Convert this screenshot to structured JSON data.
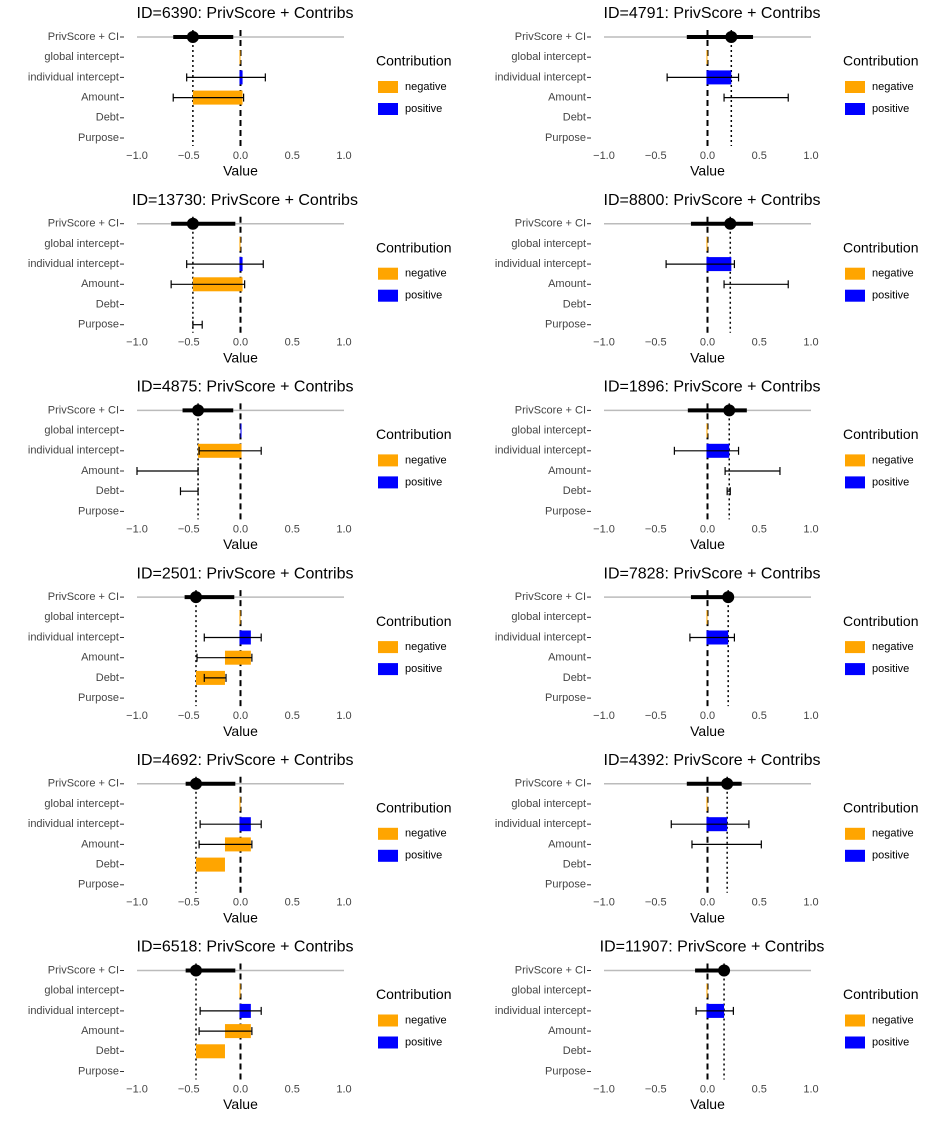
{
  "chart_data": [
    {
      "type": "waterfall",
      "title": "ID=6390: PrivScore + Contribs",
      "score": {
        "name": "PrivScore + CI",
        "value": -0.46,
        "ci": [
          -0.65,
          -0.07
        ]
      },
      "categories": [
        "global intercept",
        "individual intercept",
        "Amount",
        "Debt",
        "Purpose"
      ],
      "values": [
        -0.01,
        0.03,
        -0.48,
        0,
        0
      ],
      "error_low": [
        null,
        -0.52,
        -0.65,
        null,
        null
      ],
      "error_high": [
        null,
        0.24,
        0.03,
        null,
        null
      ],
      "xlim": [
        -1,
        1
      ],
      "xticks": [
        {
          "value": -1,
          "label": "−1.0"
        },
        {
          "value": -0.5,
          "label": "−0.5"
        },
        {
          "value": 0,
          "label": "0.0"
        },
        0.5,
        {
          "value": 1,
          "label": "1.0"
        }
      ],
      "xlabel": "Value",
      "legend": {
        "title": "Contribution",
        "items": [
          {
            "name": "negative",
            "color": "#FFA500"
          },
          {
            "name": "positive",
            "color": "#0000FF"
          }
        ]
      }
    },
    {
      "type": "waterfall",
      "title": "ID=4791: PrivScore + Contribs",
      "score": {
        "name": "PrivScore + CI",
        "value": 0.23,
        "ci": [
          -0.2,
          0.44
        ]
      },
      "categories": [
        "global intercept",
        "individual intercept",
        "Amount",
        "Debt",
        "Purpose"
      ],
      "values": [
        -0.01,
        0.24,
        0,
        0,
        0
      ],
      "error_low": [
        null,
        -0.39,
        0.16,
        null,
        null
      ],
      "error_high": [
        null,
        0.3,
        0.78,
        null,
        null
      ],
      "xlim": [
        -1,
        1
      ],
      "xticks": [
        {
          "value": -1,
          "label": "−1.0"
        },
        {
          "value": -0.5,
          "label": "−0.5"
        },
        {
          "value": 0,
          "label": "0.0"
        },
        0.5,
        {
          "value": 1,
          "label": "1.0"
        }
      ],
      "xlabel": "Value",
      "legend": {
        "title": "Contribution",
        "items": [
          {
            "name": "negative",
            "color": "#FFA500"
          },
          {
            "name": "positive",
            "color": "#0000FF"
          }
        ]
      }
    },
    {
      "type": "waterfall",
      "title": "ID=13730: PrivScore + Contribs",
      "score": {
        "name": "PrivScore + CI",
        "value": -0.46,
        "ci": [
          -0.67,
          -0.05
        ]
      },
      "categories": [
        "global intercept",
        "individual intercept",
        "Amount",
        "Debt",
        "Purpose"
      ],
      "values": [
        -0.01,
        0.03,
        -0.48,
        0,
        0
      ],
      "error_low": [
        null,
        -0.52,
        -0.67,
        null,
        -0.46
      ],
      "error_high": [
        null,
        0.22,
        0.04,
        null,
        -0.37
      ],
      "xlim": [
        -1,
        1
      ],
      "xticks": [
        {
          "value": -1,
          "label": "−1.0"
        },
        {
          "value": -0.5,
          "label": "−0.5"
        },
        {
          "value": 0,
          "label": "0.0"
        },
        0.5,
        {
          "value": 1,
          "label": "1.0"
        }
      ],
      "xlabel": "Value",
      "legend": {
        "title": "Contribution",
        "items": [
          {
            "name": "negative",
            "color": "#FFA500"
          },
          {
            "name": "positive",
            "color": "#0000FF"
          }
        ]
      }
    },
    {
      "type": "waterfall",
      "title": "ID=8800: PrivScore + Contribs",
      "score": {
        "name": "PrivScore + CI",
        "value": 0.22,
        "ci": [
          -0.16,
          0.44
        ]
      },
      "categories": [
        "global intercept",
        "individual intercept",
        "Amount",
        "Debt",
        "Purpose"
      ],
      "values": [
        -0.01,
        0.24,
        0,
        0,
        0
      ],
      "error_low": [
        null,
        -0.4,
        0.16,
        null,
        null
      ],
      "error_high": [
        null,
        0.26,
        0.78,
        null,
        null
      ],
      "xlim": [
        -1,
        1
      ],
      "xticks": [
        {
          "value": -1,
          "label": "−1.0"
        },
        {
          "value": -0.5,
          "label": "−0.5"
        },
        {
          "value": 0,
          "label": "0.0"
        },
        0.5,
        {
          "value": 1,
          "label": "1.0"
        }
      ],
      "xlabel": "Value",
      "legend": {
        "title": "Contribution",
        "items": [
          {
            "name": "negative",
            "color": "#FFA500"
          },
          {
            "name": "positive",
            "color": "#0000FF"
          }
        ]
      }
    },
    {
      "type": "waterfall",
      "title": "ID=4875: PrivScore + Contribs",
      "score": {
        "name": "PrivScore + CI",
        "value": -0.41,
        "ci": [
          -0.56,
          -0.07
        ]
      },
      "categories": [
        "global intercept",
        "individual intercept",
        "Amount",
        "Debt",
        "Purpose"
      ],
      "values": [
        0.01,
        -0.42,
        0,
        0,
        0
      ],
      "error_low": [
        null,
        -0.4,
        -1.0,
        -0.58,
        null
      ],
      "error_high": [
        null,
        0.2,
        -0.41,
        -0.41,
        null
      ],
      "xlim": [
        -1,
        1
      ],
      "xticks": [
        {
          "value": -1,
          "label": "−1.0"
        },
        {
          "value": -0.5,
          "label": "−0.5"
        },
        {
          "value": 0,
          "label": "0.0"
        },
        0.5,
        {
          "value": 1,
          "label": "1.0"
        }
      ],
      "xlabel": "Value",
      "legend": {
        "title": "Contribution",
        "items": [
          {
            "name": "negative",
            "color": "#FFA500"
          },
          {
            "name": "positive",
            "color": "#0000FF"
          }
        ]
      }
    },
    {
      "type": "waterfall",
      "title": "ID=1896: PrivScore + Contribs",
      "score": {
        "name": "PrivScore + CI",
        "value": 0.21,
        "ci": [
          -0.19,
          0.38
        ]
      },
      "categories": [
        "global intercept",
        "individual intercept",
        "Amount",
        "Debt",
        "Purpose"
      ],
      "values": [
        -0.01,
        0.22,
        0,
        0,
        0
      ],
      "error_low": [
        null,
        -0.32,
        0.17,
        0.19,
        null
      ],
      "error_high": [
        null,
        0.3,
        0.7,
        0.22,
        null
      ],
      "xlim": [
        -1,
        1
      ],
      "xticks": [
        {
          "value": -1,
          "label": "−1.0"
        },
        {
          "value": -0.5,
          "label": "−0.5"
        },
        {
          "value": 0,
          "label": "0.0"
        },
        0.5,
        {
          "value": 1,
          "label": "1.0"
        }
      ],
      "xlabel": "Value",
      "legend": {
        "title": "Contribution",
        "items": [
          {
            "name": "negative",
            "color": "#FFA500"
          },
          {
            "name": "positive",
            "color": "#0000FF"
          }
        ]
      }
    },
    {
      "type": "waterfall",
      "title": "ID=2501: PrivScore + Contribs",
      "score": {
        "name": "PrivScore + CI",
        "value": -0.43,
        "ci": [
          -0.54,
          -0.06
        ]
      },
      "categories": [
        "global intercept",
        "individual intercept",
        "Amount",
        "Debt",
        "Purpose"
      ],
      "values": [
        -0.01,
        0.11,
        -0.25,
        -0.28,
        0
      ],
      "error_low": [
        null,
        -0.35,
        -0.42,
        -0.35,
        null
      ],
      "error_high": [
        null,
        0.2,
        0.11,
        -0.14,
        null
      ],
      "xlim": [
        -1,
        1
      ],
      "xticks": [
        {
          "value": -1,
          "label": "−1.0"
        },
        {
          "value": -0.5,
          "label": "−0.5"
        },
        {
          "value": 0,
          "label": "0.0"
        },
        0.5,
        {
          "value": 1,
          "label": "1.0"
        }
      ],
      "xlabel": "Value",
      "legend": {
        "title": "Contribution",
        "items": [
          {
            "name": "negative",
            "color": "#FFA500"
          },
          {
            "name": "positive",
            "color": "#0000FF"
          }
        ]
      }
    },
    {
      "type": "waterfall",
      "title": "ID=7828: PrivScore + Contribs",
      "score": {
        "name": "PrivScore + CI",
        "value": 0.2,
        "ci": [
          -0.16,
          0.2
        ]
      },
      "categories": [
        "global intercept",
        "individual intercept",
        "Amount",
        "Debt",
        "Purpose"
      ],
      "values": [
        -0.01,
        0.21,
        0,
        0,
        0
      ],
      "error_low": [
        null,
        -0.17,
        null,
        null,
        null
      ],
      "error_high": [
        null,
        0.26,
        null,
        null,
        null
      ],
      "xlim": [
        -1,
        1
      ],
      "xticks": [
        {
          "value": -1,
          "label": "−1.0"
        },
        {
          "value": -0.5,
          "label": "−0.5"
        },
        {
          "value": 0,
          "label": "0.0"
        },
        0.5,
        {
          "value": 1,
          "label": "1.0"
        }
      ],
      "xlabel": "Value",
      "legend": {
        "title": "Contribution",
        "items": [
          {
            "name": "negative",
            "color": "#FFA500"
          },
          {
            "name": "positive",
            "color": "#0000FF"
          }
        ]
      }
    },
    {
      "type": "waterfall",
      "title": "ID=4692: PrivScore + Contribs",
      "score": {
        "name": "PrivScore + CI",
        "value": -0.43,
        "ci": [
          -0.53,
          -0.05
        ]
      },
      "categories": [
        "global intercept",
        "individual intercept",
        "Amount",
        "Debt",
        "Purpose"
      ],
      "values": [
        -0.01,
        0.11,
        -0.25,
        -0.28,
        0
      ],
      "error_low": [
        null,
        -0.39,
        -0.4,
        null,
        null
      ],
      "error_high": [
        null,
        0.2,
        0.11,
        null,
        null
      ],
      "xlim": [
        -1,
        1
      ],
      "xticks": [
        {
          "value": -1,
          "label": "−1.0"
        },
        {
          "value": -0.5,
          "label": "−0.5"
        },
        {
          "value": 0,
          "label": "0.0"
        },
        0.5,
        {
          "value": 1,
          "label": "1.0"
        }
      ],
      "xlabel": "Value",
      "legend": {
        "title": "Contribution",
        "items": [
          {
            "name": "negative",
            "color": "#FFA500"
          },
          {
            "name": "positive",
            "color": "#0000FF"
          }
        ]
      }
    },
    {
      "type": "waterfall",
      "title": "ID=4392: PrivScore + Contribs",
      "score": {
        "name": "PrivScore + CI",
        "value": 0.19,
        "ci": [
          -0.2,
          0.33
        ]
      },
      "categories": [
        "global intercept",
        "individual intercept",
        "Amount",
        "Debt",
        "Purpose"
      ],
      "values": [
        -0.01,
        0.2,
        0,
        0,
        0
      ],
      "error_low": [
        null,
        -0.35,
        -0.15,
        null,
        null
      ],
      "error_high": [
        null,
        0.4,
        0.52,
        null,
        null
      ],
      "xlim": [
        -1,
        1
      ],
      "xticks": [
        {
          "value": -1,
          "label": "−1.0"
        },
        {
          "value": -0.5,
          "label": "−0.5"
        },
        {
          "value": 0,
          "label": "0.0"
        },
        0.5,
        {
          "value": 1,
          "label": "1.0"
        }
      ],
      "xlabel": "Value",
      "legend": {
        "title": "Contribution",
        "items": [
          {
            "name": "negative",
            "color": "#FFA500"
          },
          {
            "name": "positive",
            "color": "#0000FF"
          }
        ]
      }
    },
    {
      "type": "waterfall",
      "title": "ID=6518: PrivScore + Contribs",
      "score": {
        "name": "PrivScore + CI",
        "value": -0.43,
        "ci": [
          -0.53,
          -0.05
        ]
      },
      "categories": [
        "global intercept",
        "individual intercept",
        "Amount",
        "Debt",
        "Purpose"
      ],
      "values": [
        -0.01,
        0.11,
        -0.25,
        -0.28,
        0
      ],
      "error_low": [
        null,
        -0.39,
        -0.4,
        null,
        null
      ],
      "error_high": [
        null,
        0.2,
        0.11,
        null,
        null
      ],
      "xlim": [
        -1,
        1
      ],
      "xticks": [
        {
          "value": -1,
          "label": "−1.0"
        },
        {
          "value": -0.5,
          "label": "−0.5"
        },
        {
          "value": 0,
          "label": "0.0"
        },
        0.5,
        {
          "value": 1,
          "label": "1.0"
        }
      ],
      "xlabel": "Value",
      "legend": {
        "title": "Contribution",
        "items": [
          {
            "name": "negative",
            "color": "#FFA500"
          },
          {
            "name": "positive",
            "color": "#0000FF"
          }
        ]
      }
    },
    {
      "type": "waterfall",
      "title": "ID=11907: PrivScore + Contribs",
      "score": {
        "name": "PrivScore + CI",
        "value": 0.16,
        "ci": [
          -0.12,
          0.16
        ]
      },
      "categories": [
        "global intercept",
        "individual intercept",
        "Amount",
        "Debt",
        "Purpose"
      ],
      "values": [
        -0.01,
        0.17,
        0,
        0,
        0
      ],
      "error_low": [
        null,
        -0.11,
        null,
        null,
        null
      ],
      "error_high": [
        null,
        0.25,
        null,
        null,
        null
      ],
      "xlim": [
        -1,
        1
      ],
      "xticks": [
        {
          "value": -1,
          "label": "−1.0"
        },
        {
          "value": -0.5,
          "label": "−0.5"
        },
        {
          "value": 0,
          "label": "0.0"
        },
        0.5,
        {
          "value": 1,
          "label": "1.0"
        }
      ],
      "xlabel": "Value",
      "legend": {
        "title": "Contribution",
        "items": [
          {
            "name": "negative",
            "color": "#FFA500"
          },
          {
            "name": "positive",
            "color": "#0000FF"
          }
        ]
      }
    }
  ]
}
